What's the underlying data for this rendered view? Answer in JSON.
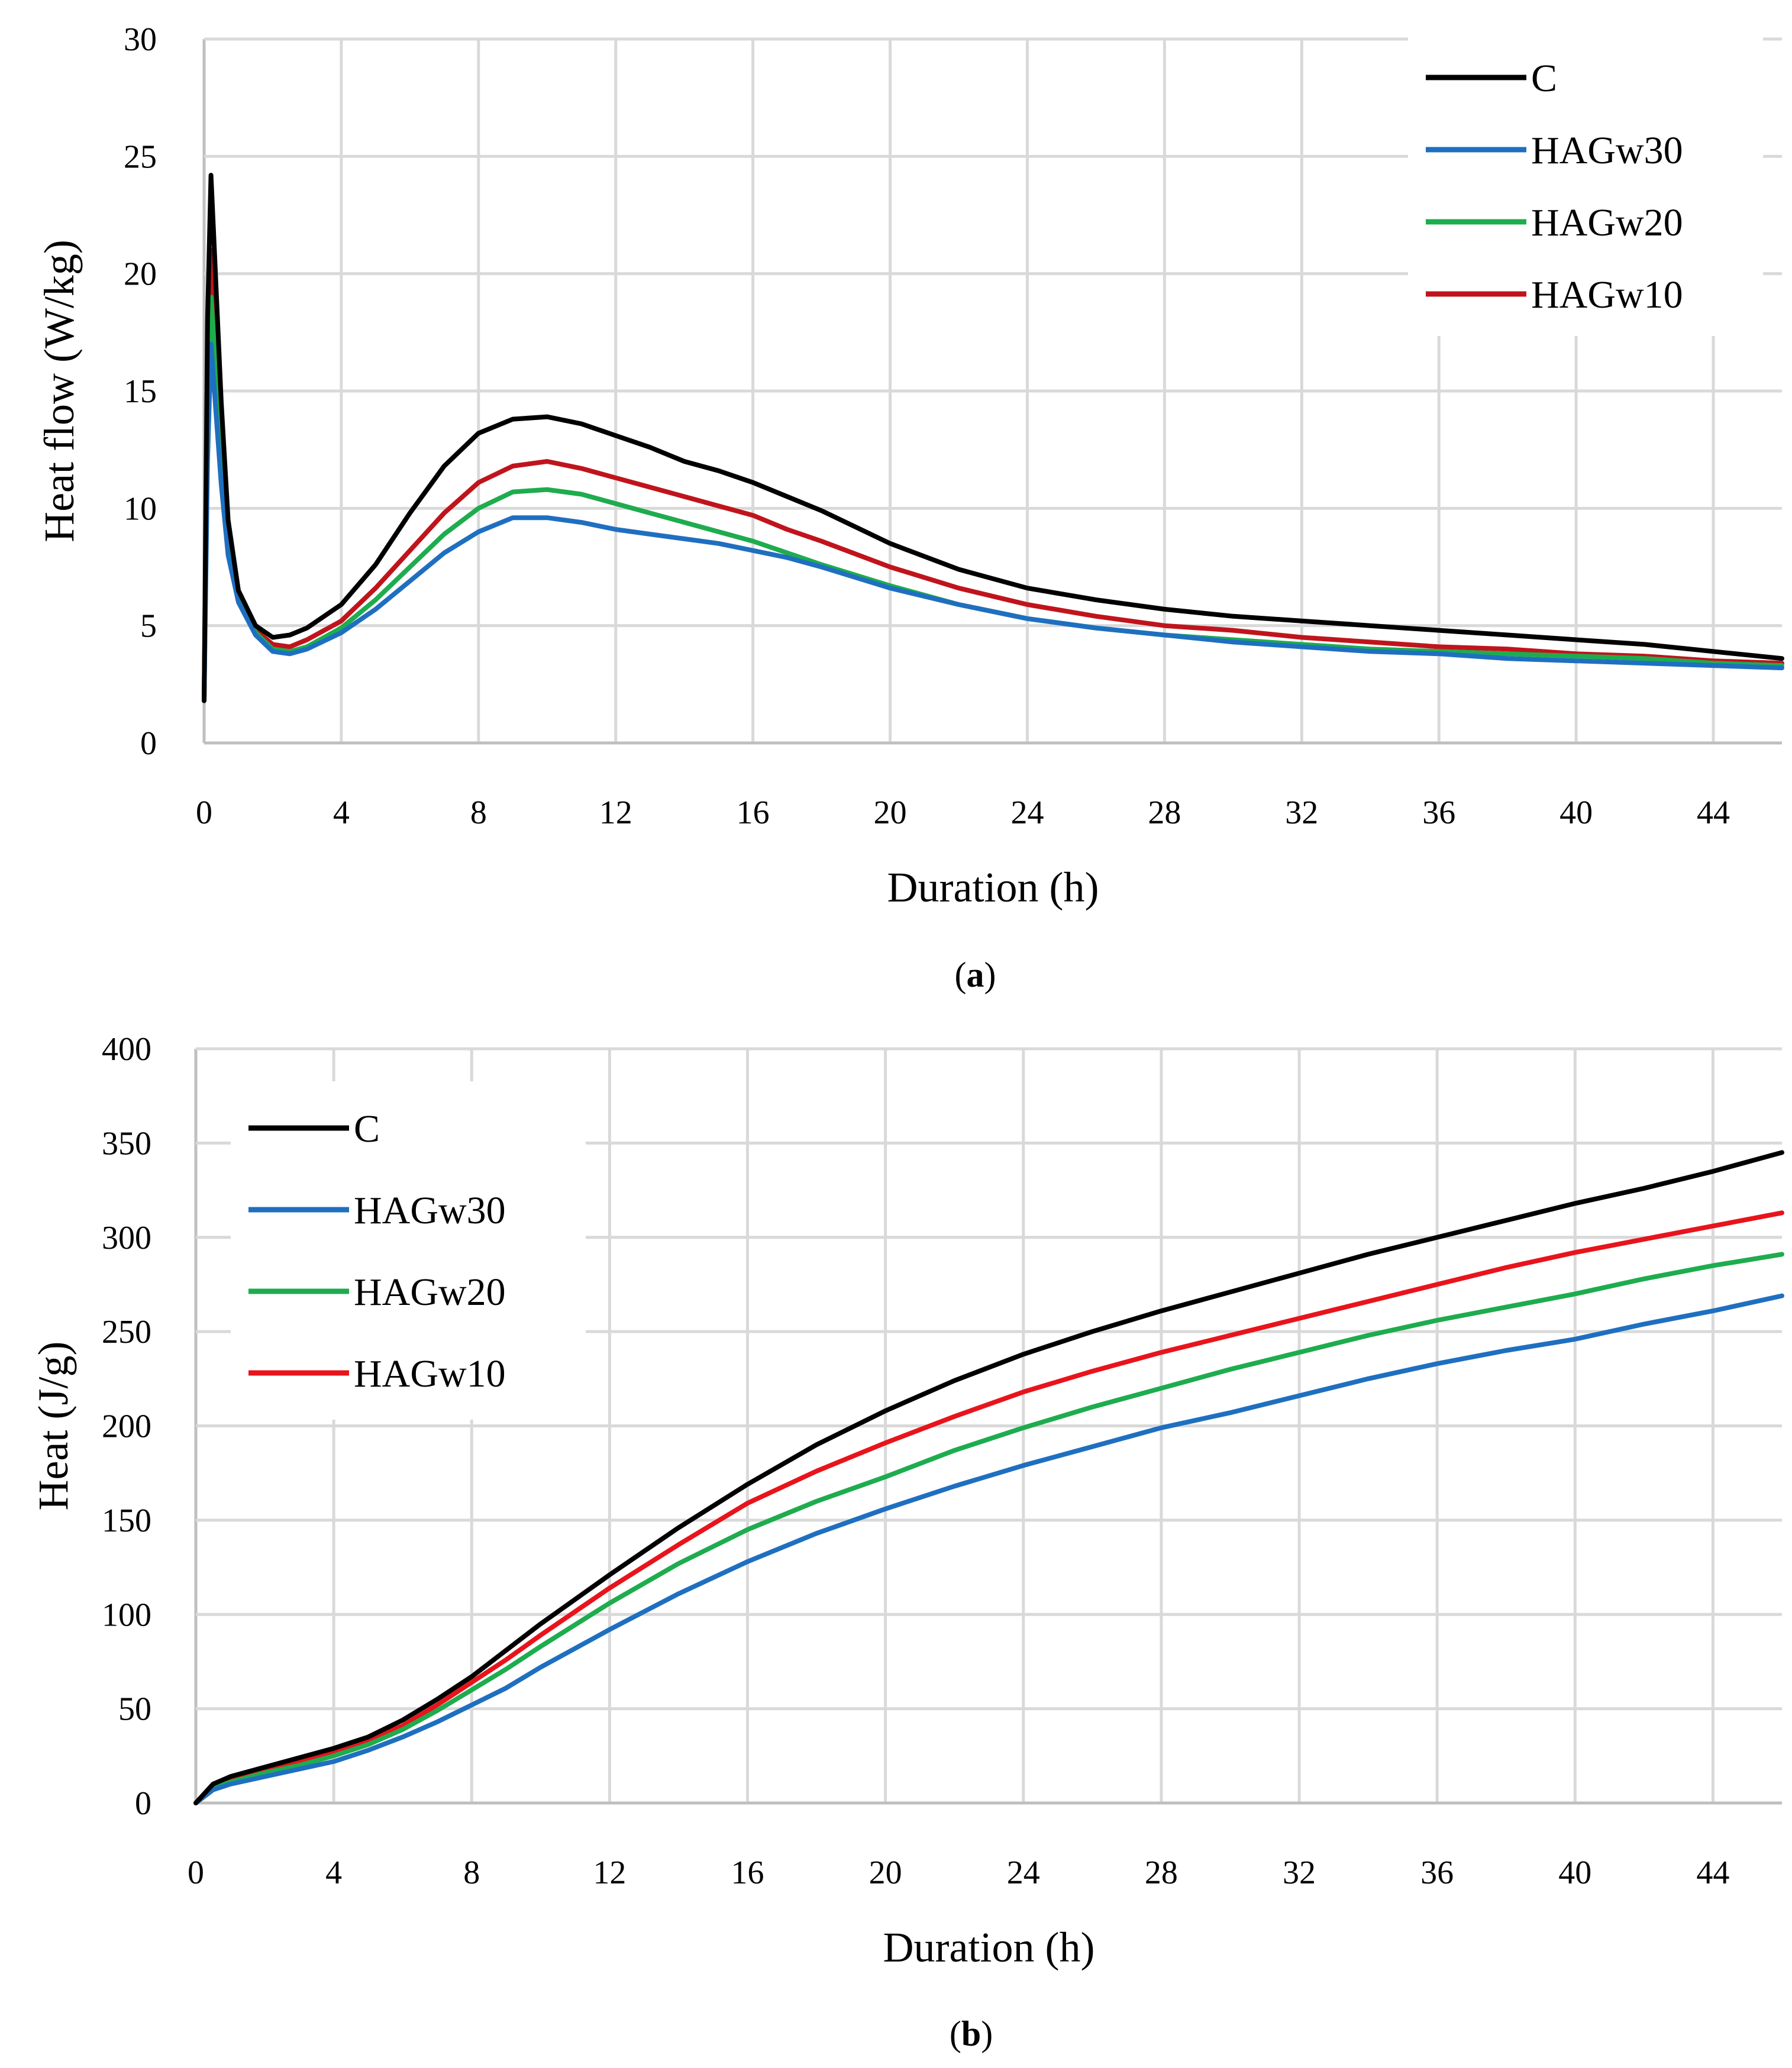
{
  "chart_data": [
    {
      "id": "a",
      "type": "line",
      "caption_letter": "a",
      "xlabel": "Duration (h)",
      "ylabel": "Heat flow (W/kg)",
      "xlim": [
        0,
        46
      ],
      "ylim": [
        0,
        30
      ],
      "xticks": [
        "0",
        "4",
        "8",
        "12",
        "16",
        "20",
        "24",
        "28",
        "32",
        "36",
        "40",
        "44"
      ],
      "yticks": [
        "0",
        "5",
        "10",
        "15",
        "20",
        "25",
        "30"
      ],
      "grid": true,
      "legend_position": "top-right",
      "series": [
        {
          "name": "C",
          "color": "#000000",
          "x": [
            0,
            0.1,
            0.2,
            0.3,
            0.5,
            0.7,
            1,
            1.5,
            2,
            2.5,
            3,
            4,
            5,
            6,
            7,
            8,
            9,
            10,
            11,
            12,
            13,
            14,
            15,
            16,
            17,
            18,
            20,
            22,
            24,
            26,
            28,
            30,
            32,
            34,
            36,
            38,
            40,
            42,
            44,
            46
          ],
          "y": [
            1.8,
            18,
            24.2,
            21,
            14.5,
            9.5,
            6.5,
            5,
            4.5,
            4.6,
            4.9,
            5.9,
            7.6,
            9.8,
            11.8,
            13.2,
            13.8,
            13.9,
            13.6,
            13.1,
            12.6,
            12.0,
            11.6,
            11.1,
            10.5,
            9.9,
            8.5,
            7.4,
            6.6,
            6.1,
            5.7,
            5.4,
            5.2,
            5.0,
            4.8,
            4.6,
            4.4,
            4.2,
            3.9,
            3.6
          ]
        },
        {
          "name": "HAGw30",
          "color": "#1f6fc0",
          "x": [
            0,
            0.1,
            0.2,
            0.3,
            0.5,
            0.7,
            1,
            1.5,
            2,
            2.5,
            3,
            4,
            5,
            6,
            7,
            8,
            9,
            10,
            11,
            12,
            13,
            14,
            15,
            16,
            17,
            18,
            20,
            22,
            24,
            26,
            28,
            30,
            32,
            34,
            36,
            38,
            40,
            42,
            44,
            46
          ],
          "y": [
            1.8,
            12,
            17,
            15,
            11,
            8,
            6,
            4.6,
            3.9,
            3.8,
            4.0,
            4.7,
            5.7,
            6.9,
            8.1,
            9.0,
            9.6,
            9.6,
            9.4,
            9.1,
            8.9,
            8.7,
            8.5,
            8.2,
            7.9,
            7.5,
            6.6,
            5.9,
            5.3,
            4.9,
            4.6,
            4.3,
            4.1,
            3.9,
            3.8,
            3.6,
            3.5,
            3.4,
            3.3,
            3.2
          ]
        },
        {
          "name": "HAGw20",
          "color": "#1eac4e",
          "x": [
            0,
            0.1,
            0.2,
            0.3,
            0.5,
            0.7,
            1,
            1.5,
            2,
            2.5,
            3,
            4,
            5,
            6,
            7,
            8,
            9,
            10,
            11,
            12,
            13,
            14,
            15,
            16,
            17,
            18,
            20,
            22,
            24,
            26,
            28,
            30,
            32,
            34,
            36,
            38,
            40,
            42,
            44,
            46
          ],
          "y": [
            1.8,
            14,
            19,
            17,
            12,
            8.5,
            6.2,
            4.7,
            4.0,
            3.9,
            4.1,
            4.9,
            6.1,
            7.5,
            8.9,
            10.0,
            10.7,
            10.8,
            10.6,
            10.2,
            9.8,
            9.4,
            9.0,
            8.6,
            8.1,
            7.6,
            6.7,
            5.9,
            5.3,
            4.9,
            4.6,
            4.4,
            4.2,
            4.0,
            3.9,
            3.8,
            3.7,
            3.6,
            3.4,
            3.3
          ]
        },
        {
          "name": "HAGw10",
          "color": "#c0141c",
          "x": [
            0,
            0.1,
            0.2,
            0.3,
            0.5,
            0.7,
            1,
            1.5,
            2,
            2.5,
            3,
            4,
            5,
            6,
            7,
            8,
            9,
            10,
            11,
            12,
            13,
            14,
            15,
            16,
            17,
            18,
            20,
            22,
            24,
            26,
            28,
            30,
            32,
            34,
            36,
            38,
            40,
            42,
            44,
            46
          ],
          "y": [
            1.8,
            16,
            21,
            18.5,
            13,
            9,
            6.3,
            4.8,
            4.2,
            4.1,
            4.4,
            5.2,
            6.6,
            8.2,
            9.8,
            11.1,
            11.8,
            12.0,
            11.7,
            11.3,
            10.9,
            10.5,
            10.1,
            9.7,
            9.1,
            8.6,
            7.5,
            6.6,
            5.9,
            5.4,
            5.0,
            4.8,
            4.5,
            4.3,
            4.1,
            4.0,
            3.8,
            3.7,
            3.5,
            3.4
          ]
        }
      ]
    },
    {
      "id": "b",
      "type": "line",
      "caption_letter": "b",
      "xlabel": "Duration (h)",
      "ylabel": "Heat (J/g)",
      "xlim": [
        0,
        46
      ],
      "ylim": [
        0,
        400
      ],
      "xticks": [
        "0",
        "4",
        "8",
        "12",
        "16",
        "20",
        "24",
        "28",
        "32",
        "36",
        "40",
        "44"
      ],
      "yticks": [
        "0",
        "50",
        "100",
        "150",
        "200",
        "250",
        "300",
        "350",
        "400"
      ],
      "grid": true,
      "legend_position": "top-left",
      "series": [
        {
          "name": "C",
          "color": "#000000",
          "x": [
            0,
            0.5,
            1,
            2,
            3,
            4,
            5,
            6,
            7,
            8,
            9,
            10,
            12,
            14,
            16,
            18,
            20,
            22,
            24,
            26,
            28,
            30,
            32,
            34,
            36,
            38,
            40,
            42,
            44,
            46
          ],
          "y": [
            0,
            10,
            14,
            19,
            24,
            29,
            35,
            44,
            55,
            67,
            81,
            95,
            121,
            146,
            169,
            190,
            208,
            224,
            238,
            250,
            261,
            271,
            281,
            291,
            300,
            309,
            318,
            326,
            335,
            345
          ]
        },
        {
          "name": "HAGw30",
          "color": "#1f6fc0",
          "x": [
            0,
            0.5,
            1,
            2,
            3,
            4,
            5,
            6,
            7,
            8,
            9,
            10,
            12,
            14,
            16,
            18,
            20,
            22,
            24,
            26,
            28,
            30,
            32,
            34,
            36,
            38,
            40,
            42,
            44,
            46
          ],
          "y": [
            0,
            7,
            10,
            14,
            18,
            22,
            28,
            35,
            43,
            52,
            61,
            72,
            92,
            111,
            128,
            143,
            156,
            168,
            179,
            189,
            199,
            207,
            216,
            225,
            233,
            240,
            246,
            254,
            261,
            269
          ]
        },
        {
          "name": "HAGw20",
          "color": "#1eac4e",
          "x": [
            0,
            0.5,
            1,
            2,
            3,
            4,
            5,
            6,
            7,
            8,
            9,
            10,
            12,
            14,
            16,
            18,
            20,
            22,
            24,
            26,
            28,
            30,
            32,
            34,
            36,
            38,
            40,
            42,
            44,
            46
          ],
          "y": [
            0,
            8,
            11,
            16,
            20,
            25,
            31,
            39,
            49,
            60,
            71,
            83,
            106,
            127,
            145,
            160,
            173,
            187,
            199,
            210,
            220,
            230,
            239,
            248,
            256,
            263,
            270,
            278,
            285,
            291
          ]
        },
        {
          "name": "HAGw10",
          "color": "#e8141c",
          "x": [
            0,
            0.5,
            1,
            2,
            3,
            4,
            5,
            6,
            7,
            8,
            9,
            10,
            12,
            14,
            16,
            18,
            20,
            22,
            24,
            26,
            28,
            30,
            32,
            34,
            36,
            38,
            40,
            42,
            44,
            46
          ],
          "y": [
            0,
            9,
            12,
            17,
            22,
            27,
            33,
            41,
            52,
            64,
            76,
            89,
            114,
            137,
            159,
            176,
            191,
            205,
            218,
            229,
            239,
            248,
            257,
            266,
            275,
            284,
            292,
            299,
            306,
            313
          ]
        }
      ]
    }
  ]
}
